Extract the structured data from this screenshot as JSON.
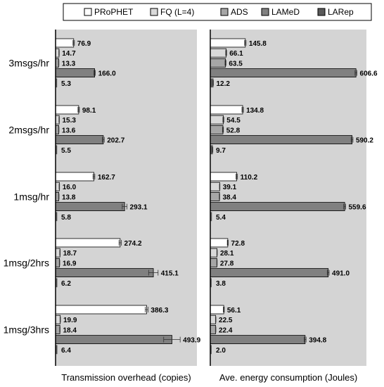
{
  "chart_data": {
    "type": "bar",
    "orientation": "horizontal",
    "legend_position": "top",
    "categories": [
      "3msgs/hr",
      "2msgs/hr",
      "1msg/hr",
      "1msg/2hrs",
      "1msg/3hrs"
    ],
    "legend": [
      {
        "name": "PRoPHET",
        "color": "#ffffff"
      },
      {
        "name": "FQ (L=4)",
        "color": "#d9d9d9"
      },
      {
        "name": "ADS",
        "color": "#a6a6a6"
      },
      {
        "name": "LAMeD",
        "color": "#808080"
      },
      {
        "name": "LARep",
        "color": "#595959"
      }
    ],
    "panels": [
      {
        "xlabel": "Transmission overhead (copies)",
        "xlim": [
          0,
          600
        ],
        "series": [
          {
            "name": "PRoPHET",
            "values": [
              76.9,
              98.1,
              162.7,
              274.2,
              386.3
            ],
            "labels": [
              "76.9",
              "98.1",
              "162.7",
              "274.2",
              "386.3"
            ],
            "errors": [
              3,
              3,
              4,
              5,
              6
            ]
          },
          {
            "name": "FQ (L=4)",
            "values": [
              14.7,
              15.3,
              16.0,
              18.7,
              19.9
            ],
            "labels": [
              "14.7",
              "15.3",
              "16.0",
              "18.7",
              "19.9"
            ],
            "errors": [
              1,
              1,
              1,
              1,
              1
            ]
          },
          {
            "name": "ADS",
            "values": [
              13.3,
              13.6,
              13.8,
              16.9,
              18.4
            ],
            "labels": [
              "13.3",
              "13.6",
              "13.8",
              "16.9",
              "18.4"
            ],
            "errors": [
              1,
              1,
              1,
              1,
              1
            ]
          },
          {
            "name": "LAMeD",
            "values": [
              166.0,
              202.7,
              293.1,
              415.1,
              493.9
            ],
            "labels": [
              "166.0",
              "202.7",
              "293.1",
              "415.1",
              "493.9"
            ],
            "errors": [
              3,
              4,
              10,
              20,
              35
            ]
          },
          {
            "name": "LARep",
            "values": [
              5.3,
              5.5,
              5.8,
              6.2,
              6.4
            ],
            "labels": [
              "5.3",
              "5.5",
              "5.8",
              "6.2",
              "6.4"
            ],
            "errors": [
              0,
              0,
              0,
              0,
              0
            ]
          }
        ]
      },
      {
        "xlabel": "Ave. energy consumption (Joules)",
        "xlim": [
          0,
          650
        ],
        "series": [
          {
            "name": "PRoPHET",
            "values": [
              145.8,
              134.8,
              110.2,
              72.8,
              56.1
            ],
            "labels": [
              "145.8",
              "134.8",
              "110.2",
              "72.8",
              "56.1"
            ],
            "errors": [
              3,
              3,
              3,
              2,
              2
            ]
          },
          {
            "name": "FQ (L=4)",
            "values": [
              66.1,
              54.5,
              39.1,
              28.1,
              22.5
            ],
            "labels": [
              "66.1",
              "54.5",
              "39.1",
              "28.1",
              "22.5"
            ],
            "errors": [
              2,
              2,
              1,
              1,
              1
            ]
          },
          {
            "name": "ADS",
            "values": [
              63.5,
              52.8,
              38.4,
              27.8,
              22.4
            ],
            "labels": [
              "63.5",
              "52.8",
              "38.4",
              "27.8",
              "22.4"
            ],
            "errors": [
              2,
              2,
              1,
              1,
              1
            ]
          },
          {
            "name": "LAMeD",
            "values": [
              606.6,
              590.2,
              559.6,
              491.0,
              394.8
            ],
            "labels": [
              "606.6",
              "590.2",
              "559.6",
              "491.0",
              "394.8"
            ],
            "errors": [
              4,
              4,
              4,
              4,
              4
            ]
          },
          {
            "name": "LARep",
            "values": [
              12.2,
              9.7,
              5.4,
              3.8,
              2.0
            ],
            "labels": [
              "12.2",
              "9.7",
              "5.4",
              "3.8",
              "2.0"
            ],
            "errors": [
              1,
              1,
              0,
              0,
              0
            ]
          }
        ]
      }
    ]
  }
}
